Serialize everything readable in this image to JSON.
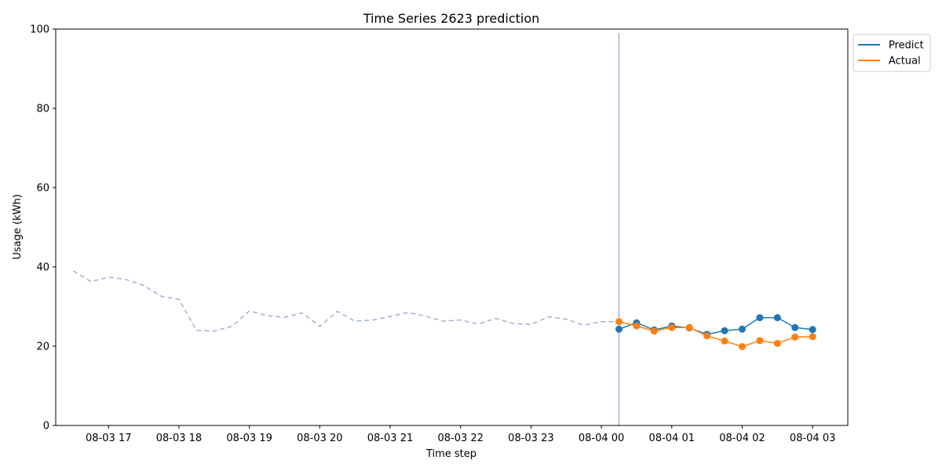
{
  "chart_data": {
    "type": "line",
    "title": "Time Series 2623 prediction",
    "xlabel": "Time step",
    "ylabel": "Usage (kWh)",
    "ylim": [
      0,
      100
    ],
    "yticks": [
      0,
      20,
      40,
      60,
      80,
      100
    ],
    "x_tick_labels": [
      "08-03 17",
      "08-03 18",
      "08-03 19",
      "08-03 20",
      "08-03 21",
      "08-03 22",
      "08-03 23",
      "08-04 00",
      "08-04 01",
      "08-04 02",
      "08-04 03"
    ],
    "x_tick_hours": [
      17,
      18,
      19,
      20,
      21,
      22,
      23,
      24,
      25,
      26,
      27
    ],
    "xlim_hours": [
      16.25,
      27.5
    ],
    "grid": false,
    "legend_position": "outside-top-right",
    "forecast_start_hour": 24.25,
    "series": [
      {
        "name": "",
        "style": "dashed",
        "color": "#9fb3cf",
        "x_hours": [
          16.5,
          16.75,
          17.0,
          17.25,
          17.5,
          17.75,
          18.0,
          18.25,
          18.5,
          18.75,
          19.0,
          19.25,
          19.5,
          19.75,
          20.0,
          20.25,
          20.5,
          20.75,
          21.0,
          21.25,
          21.5,
          21.75,
          22.0,
          22.25,
          22.5,
          22.75,
          23.0,
          23.25,
          23.5,
          23.75,
          24.0,
          24.25
        ],
        "values": [
          39.0,
          36.3,
          37.4,
          36.8,
          35.3,
          32.6,
          31.8,
          24.0,
          23.8,
          25.0,
          28.9,
          27.7,
          27.3,
          28.4,
          25.0,
          28.8,
          26.3,
          26.6,
          27.5,
          28.5,
          27.6,
          26.3,
          26.6,
          25.6,
          27.0,
          25.7,
          25.5,
          27.4,
          26.8,
          25.3,
          26.2,
          26.2
        ]
      },
      {
        "name": "Predict",
        "style": "solid-markers",
        "color": "#1f77b4",
        "x_hours": [
          24.25,
          24.5,
          24.75,
          25.0,
          25.25,
          25.5,
          25.75,
          26.0,
          26.25,
          26.5,
          26.75,
          27.0
        ],
        "values": [
          24.3,
          25.9,
          24.1,
          25.1,
          24.6,
          23.0,
          23.9,
          24.3,
          27.2,
          27.2,
          24.7,
          24.2
        ]
      },
      {
        "name": "Actual",
        "style": "solid-markers",
        "color": "#ff7f0e",
        "x_hours": [
          24.25,
          24.5,
          24.75,
          25.0,
          25.25,
          25.5,
          25.75,
          26.0,
          26.25,
          26.5,
          26.75,
          27.0
        ],
        "values": [
          26.2,
          25.1,
          23.8,
          24.7,
          24.7,
          22.6,
          21.3,
          19.9,
          21.4,
          20.7,
          22.3,
          22.4
        ]
      }
    ]
  }
}
